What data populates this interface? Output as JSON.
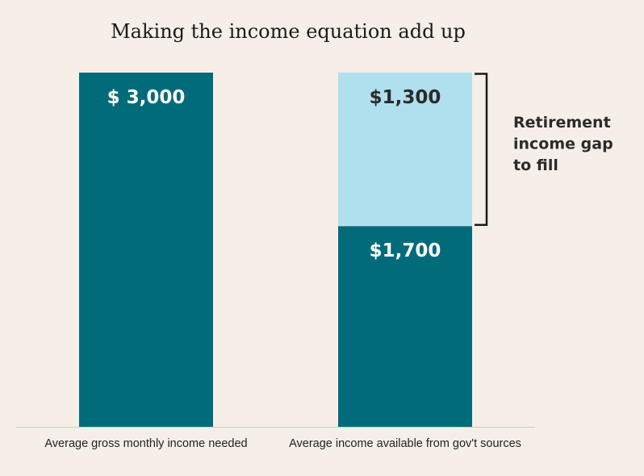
{
  "chart_data": {
    "type": "bar",
    "stacked": true,
    "title": "Making the income equation add up",
    "categories": [
      "Average gross monthly income needed",
      "Average income available from gov't sources"
    ],
    "series": [
      {
        "values": [
          3000,
          1700
        ],
        "labels": [
          "$ 3,000",
          "$1,700"
        ]
      },
      {
        "values": [
          0,
          1300
        ],
        "labels": [
          "",
          "$1,300"
        ]
      }
    ],
    "ylim": [
      0,
      3000
    ],
    "grid": false,
    "annotation": {
      "lines": [
        "Retirement",
        "income gap",
        "to fill"
      ]
    }
  },
  "colors": {
    "background": "#f5efe8",
    "primary": "#016b7a",
    "gap": "#b0dfed",
    "label_on_primary": "#ffffff",
    "label_on_gap": "#2b2b2b",
    "baseline": "#cfcac4",
    "bracket": "#1a1a1a"
  }
}
